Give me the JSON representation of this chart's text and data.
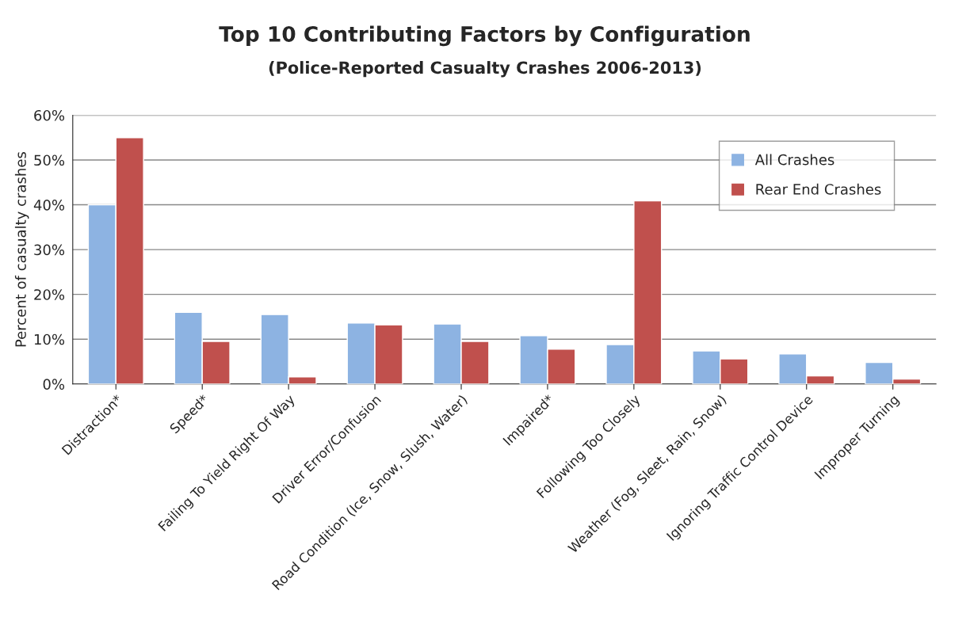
{
  "chart_data": {
    "type": "bar",
    "title": "Top 10 Contributing Factors by Configuration",
    "subtitle": "(Police-Reported Casualty Crashes 2006-2013)",
    "ylabel": "Percent of casualty crashes",
    "categories": [
      "Distraction*",
      "Speed*",
      "Failing To Yield Right Of Way",
      "Driver Error/Confusion",
      "Road Condition (Ice, Snow, Slush, Water)",
      "Impaired*",
      "Following Too Closely",
      "Weather (Fog, Sleet, Rain, Snow)",
      "Ignoring Traffic Control Device",
      "Improper Turning"
    ],
    "series": [
      {
        "name": "All Crashes",
        "color": "#8db3e2",
        "values": [
          40,
          16,
          15.5,
          13.6,
          13.4,
          10.8,
          8.8,
          7.4,
          6.7,
          4.8
        ]
      },
      {
        "name": "Rear End Crashes",
        "color": "#c0504d",
        "values": [
          55,
          9.5,
          1.6,
          13.2,
          9.5,
          7.8,
          40.9,
          5.6,
          1.8,
          1.1
        ]
      }
    ],
    "ylim": [
      0,
      60
    ],
    "yticks": [
      {
        "value": 0,
        "label": "0%"
      },
      {
        "value": 10,
        "label": "10%"
      },
      {
        "value": 20,
        "label": "20%"
      },
      {
        "value": 30,
        "label": "30%"
      },
      {
        "value": 40,
        "label": "40%"
      },
      {
        "value": 50,
        "label": "50%"
      },
      {
        "value": 60,
        "label": "60%"
      }
    ],
    "grid": "y",
    "legend": "top right"
  }
}
